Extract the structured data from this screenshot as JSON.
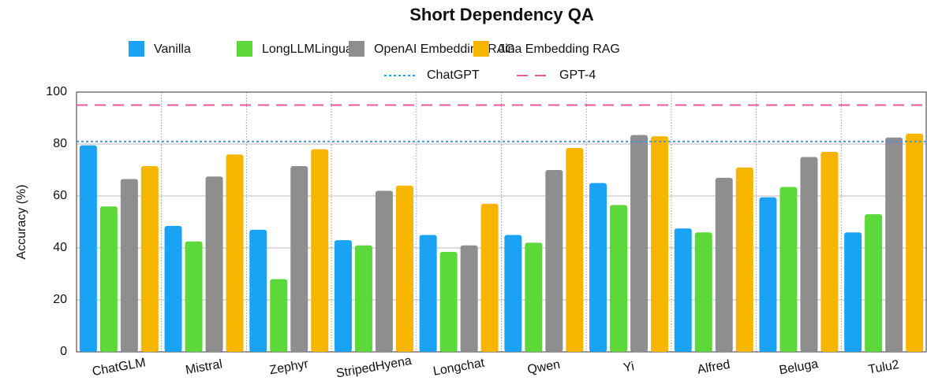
{
  "chart_data": {
    "type": "bar",
    "title": "Short Dependency QA",
    "ylabel": "Accuracy (%)",
    "categories": [
      "ChatGLM",
      "Mistral",
      "Zephyr",
      "StripedHyena",
      "Longchat",
      "Qwen",
      "Yi",
      "Alfred",
      "Beluga",
      "Tulu2"
    ],
    "series": [
      {
        "name": "Vanilla",
        "color": "#1aa3f5",
        "values": [
          79.5,
          48.5,
          47,
          43,
          45,
          45,
          65,
          47.5,
          59.5,
          46
        ]
      },
      {
        "name": "LongLLMLingua",
        "color": "#5dd83a",
        "values": [
          56,
          42.5,
          28,
          41,
          38.5,
          42,
          56.5,
          46,
          63.5,
          53
        ]
      },
      {
        "name": "OpenAI Embedding RAG",
        "color": "#8e8e8e",
        "values": [
          66.5,
          67.5,
          71.5,
          62,
          41,
          70,
          83.5,
          67,
          75,
          82.5
        ]
      },
      {
        "name": "Jina Embedding  RAG",
        "color": "#f7b500",
        "values": [
          71.5,
          76,
          78,
          64,
          57,
          78.5,
          83,
          71,
          77,
          84
        ]
      }
    ],
    "reference_lines": [
      {
        "name": "ChatGPT",
        "value": 81,
        "color": "#1aa3f5",
        "style": "dotted"
      },
      {
        "name": "GPT-4",
        "value": 95,
        "color": "#e85a9f",
        "style": "dashed"
      }
    ],
    "ylim": [
      0,
      100
    ],
    "yticks": [
      0,
      20,
      40,
      60,
      80,
      100
    ],
    "grid": true
  }
}
